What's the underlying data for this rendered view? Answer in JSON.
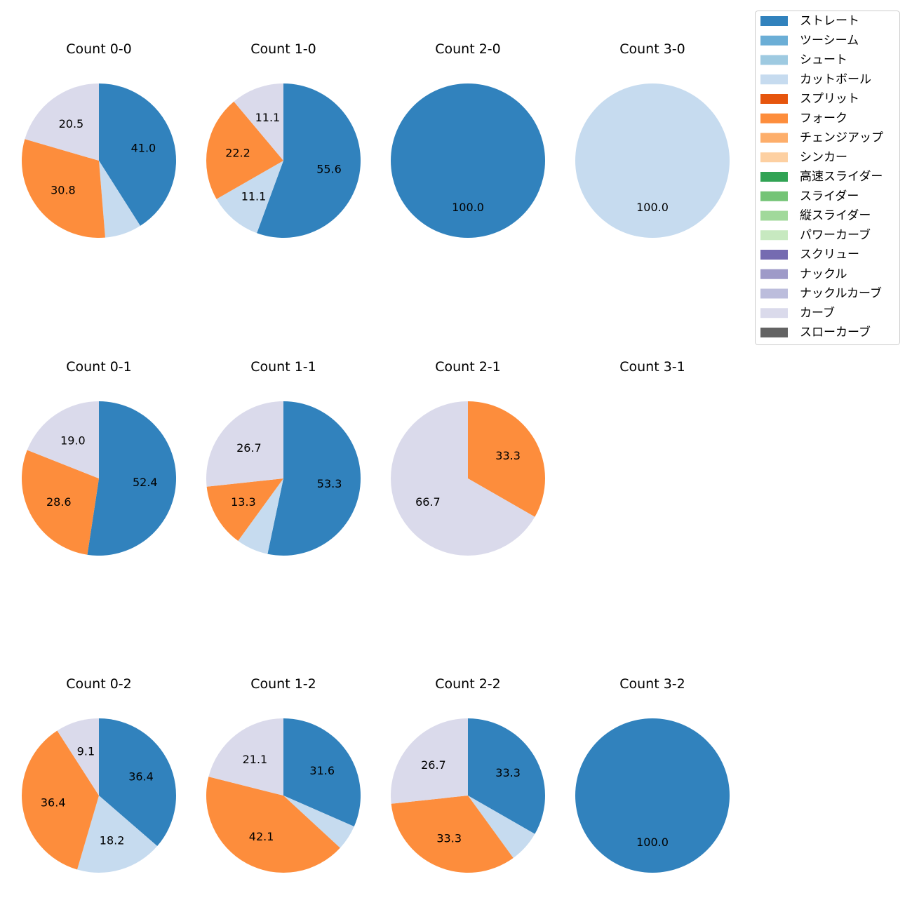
{
  "legend": {
    "items": [
      {
        "label": "ストレート",
        "color": "#3182bd"
      },
      {
        "label": "ツーシーム",
        "color": "#6baed6"
      },
      {
        "label": "シュート",
        "color": "#9ecae1"
      },
      {
        "label": "カットボール",
        "color": "#c6dbef"
      },
      {
        "label": "スプリット",
        "color": "#e6550d"
      },
      {
        "label": "フォーク",
        "color": "#fd8d3c"
      },
      {
        "label": "チェンジアップ",
        "color": "#fdae6b"
      },
      {
        "label": "シンカー",
        "color": "#fdd0a2"
      },
      {
        "label": "高速スライダー",
        "color": "#31a354"
      },
      {
        "label": "スライダー",
        "color": "#74c476"
      },
      {
        "label": "縦スライダー",
        "color": "#a1d99b"
      },
      {
        "label": "パワーカーブ",
        "color": "#c7e9c0"
      },
      {
        "label": "スクリュー",
        "color": "#756bb1"
      },
      {
        "label": "ナックル",
        "color": "#9e9ac8"
      },
      {
        "label": "ナックルカーブ",
        "color": "#bcbddc"
      },
      {
        "label": "カーブ",
        "color": "#dadaeb"
      },
      {
        "label": "スローカーブ",
        "color": "#636363"
      }
    ]
  },
  "chart_data": [
    {
      "type": "pie",
      "title": "Count 0-0",
      "slices": [
        {
          "pitch": "ストレート",
          "value": 41.0,
          "label": "41.0"
        },
        {
          "pitch": "カットボール",
          "value": 7.7,
          "label": ""
        },
        {
          "pitch": "フォーク",
          "value": 30.8,
          "label": "30.8"
        },
        {
          "pitch": "カーブ",
          "value": 20.5,
          "label": "20.5"
        }
      ]
    },
    {
      "type": "pie",
      "title": "Count 1-0",
      "slices": [
        {
          "pitch": "ストレート",
          "value": 55.6,
          "label": "55.6"
        },
        {
          "pitch": "カットボール",
          "value": 11.1,
          "label": "11.1"
        },
        {
          "pitch": "フォーク",
          "value": 22.2,
          "label": "22.2"
        },
        {
          "pitch": "カーブ",
          "value": 11.1,
          "label": "11.1"
        }
      ]
    },
    {
      "type": "pie",
      "title": "Count 2-0",
      "slices": [
        {
          "pitch": "ストレート",
          "value": 100.0,
          "label": "100.0"
        }
      ]
    },
    {
      "type": "pie",
      "title": "Count 3-0",
      "slices": [
        {
          "pitch": "カットボール",
          "value": 100.0,
          "label": "100.0"
        }
      ]
    },
    {
      "type": "pie",
      "title": "Count 0-1",
      "slices": [
        {
          "pitch": "ストレート",
          "value": 52.4,
          "label": "52.4"
        },
        {
          "pitch": "フォーク",
          "value": 28.6,
          "label": "28.6"
        },
        {
          "pitch": "カーブ",
          "value": 19.0,
          "label": "19.0"
        }
      ]
    },
    {
      "type": "pie",
      "title": "Count 1-1",
      "slices": [
        {
          "pitch": "ストレート",
          "value": 53.3,
          "label": "53.3"
        },
        {
          "pitch": "カットボール",
          "value": 6.7,
          "label": ""
        },
        {
          "pitch": "フォーク",
          "value": 13.3,
          "label": "13.3"
        },
        {
          "pitch": "カーブ",
          "value": 26.7,
          "label": "26.7"
        }
      ]
    },
    {
      "type": "pie",
      "title": "Count 2-1",
      "slices": [
        {
          "pitch": "フォーク",
          "value": 33.3,
          "label": "33.3"
        },
        {
          "pitch": "カーブ",
          "value": 66.7,
          "label": "66.7"
        }
      ]
    },
    {
      "type": "pie",
      "title": "Count 3-1",
      "slices": []
    },
    {
      "type": "pie",
      "title": "Count 0-2",
      "slices": [
        {
          "pitch": "ストレート",
          "value": 36.4,
          "label": "36.4"
        },
        {
          "pitch": "カットボール",
          "value": 18.2,
          "label": "18.2"
        },
        {
          "pitch": "フォーク",
          "value": 36.4,
          "label": "36.4"
        },
        {
          "pitch": "カーブ",
          "value": 9.1,
          "label": "9.1"
        }
      ]
    },
    {
      "type": "pie",
      "title": "Count 1-2",
      "slices": [
        {
          "pitch": "ストレート",
          "value": 31.6,
          "label": "31.6"
        },
        {
          "pitch": "カットボール",
          "value": 5.3,
          "label": ""
        },
        {
          "pitch": "フォーク",
          "value": 42.1,
          "label": "42.1"
        },
        {
          "pitch": "カーブ",
          "value": 21.1,
          "label": "21.1"
        }
      ]
    },
    {
      "type": "pie",
      "title": "Count 2-2",
      "slices": [
        {
          "pitch": "ストレート",
          "value": 33.3,
          "label": "33.3"
        },
        {
          "pitch": "カットボール",
          "value": 6.7,
          "label": ""
        },
        {
          "pitch": "フォーク",
          "value": 33.3,
          "label": "33.3"
        },
        {
          "pitch": "カーブ",
          "value": 26.7,
          "label": "26.7"
        }
      ]
    },
    {
      "type": "pie",
      "title": "Count 3-2",
      "slices": [
        {
          "pitch": "ストレート",
          "value": 100.0,
          "label": "100.0"
        }
      ]
    }
  ]
}
